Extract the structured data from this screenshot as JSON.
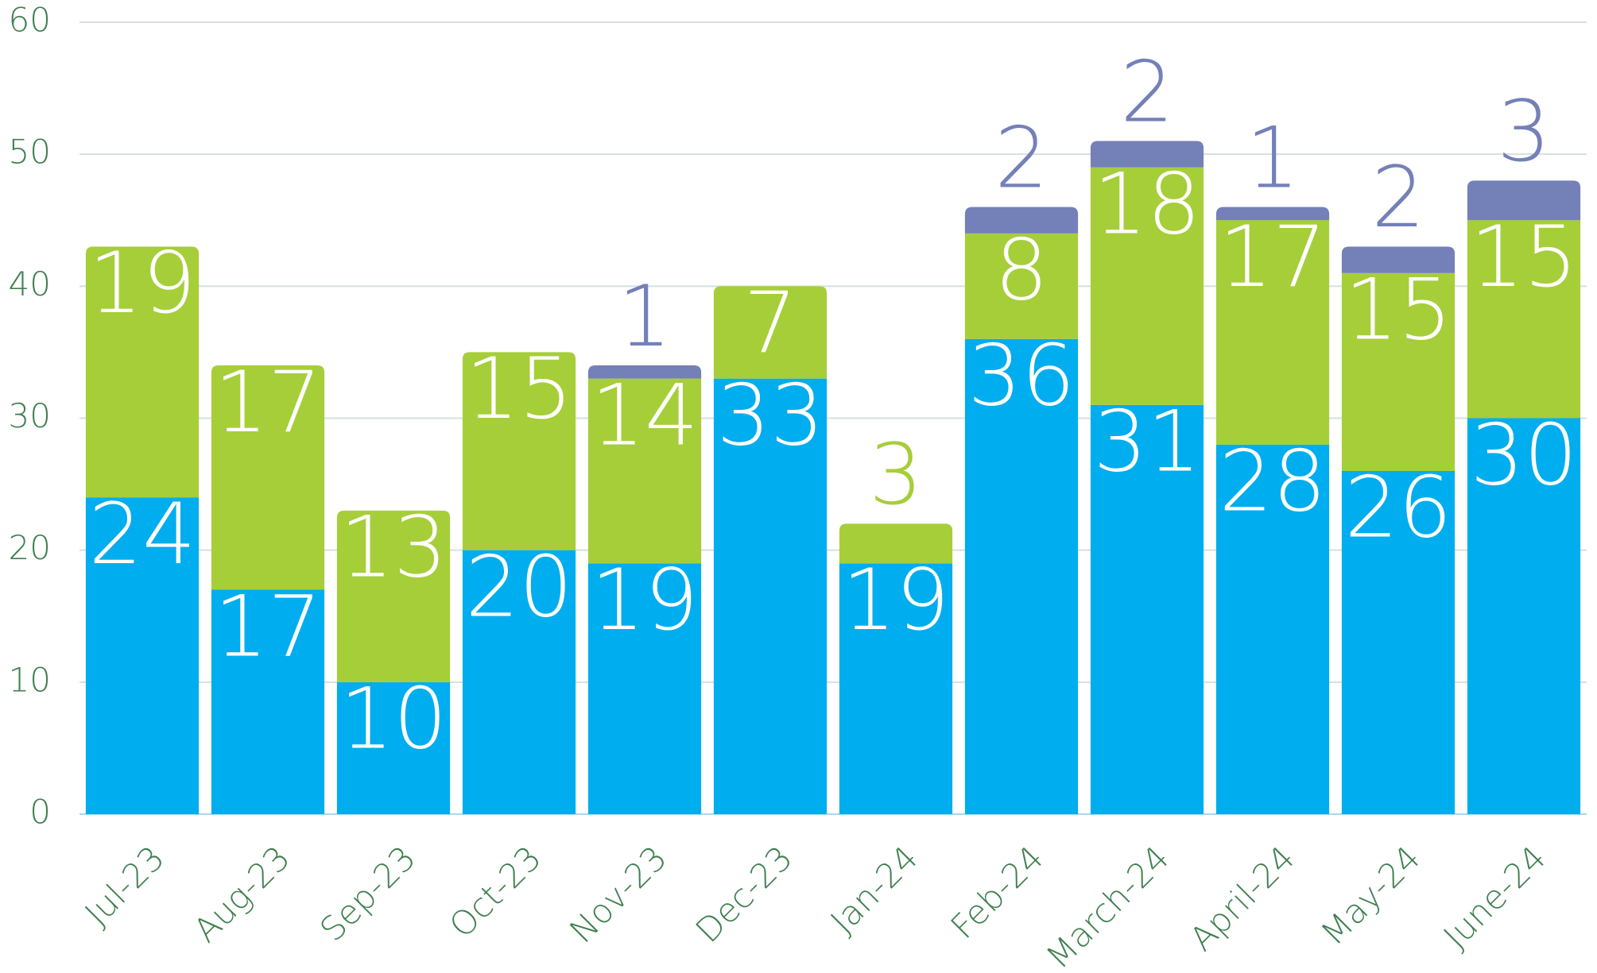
{
  "chart_data": {
    "type": "stacked_bar",
    "categories": [
      "Jul-23",
      "Aug-23",
      "Sep-23",
      "Oct-23",
      "Nov-23",
      "Dec-23",
      "Jan-24",
      "Feb-24",
      "March-24",
      "April-24",
      "May-24",
      "June-24"
    ],
    "series": [
      {
        "color": "#00adee",
        "values": [
          24,
          17,
          10,
          20,
          19,
          33,
          19,
          36,
          31,
          28,
          26,
          30
        ]
      },
      {
        "color": "#a6ce39",
        "values": [
          19,
          17,
          13,
          15,
          14,
          7,
          3,
          8,
          18,
          17,
          15,
          15
        ]
      },
      {
        "color": "#7480b8",
        "values": [
          null,
          null,
          null,
          null,
          1,
          null,
          null,
          2,
          2,
          1,
          2,
          3
        ]
      }
    ],
    "ylim": [
      0,
      60
    ],
    "yticks": [
      0,
      10,
      20,
      30,
      40,
      50,
      60
    ],
    "grid": true
  }
}
